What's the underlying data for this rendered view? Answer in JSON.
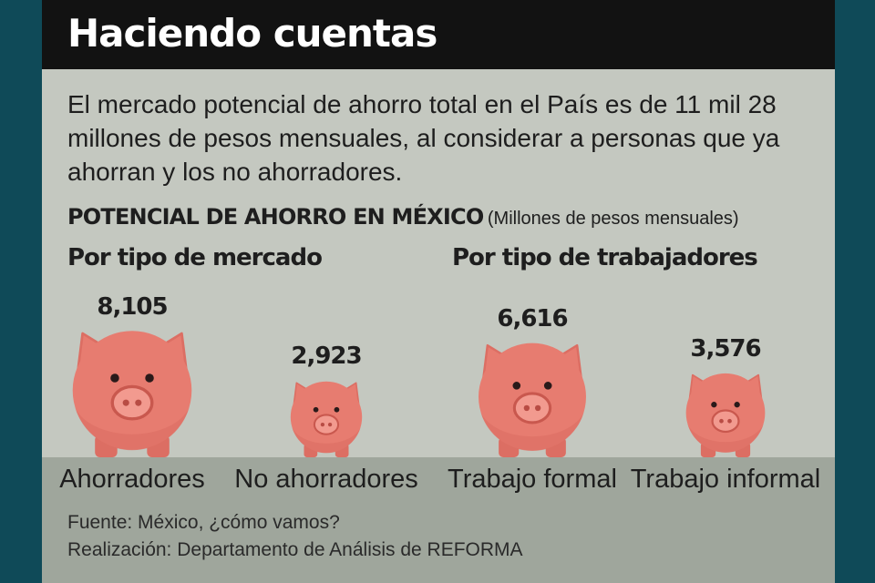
{
  "title": "Haciendo cuentas",
  "intro": "El mercado potencial de ahorro total en el País es de 11 mil 28 millones de pesos mensuales, al considerar a personas que ya ahorran y los no ahorradores.",
  "section_title": "POTENCIAL DE AHORRO EN MÉXICO",
  "section_unit": "(Millones de pesos mensuales)",
  "groups": [
    "Por tipo de mercado",
    "Por tipo de trabajadores"
  ],
  "source": "Fuente: México, ¿cómo vamos?",
  "credit": "Realización: Departamento de Análisis de REFORMA",
  "colors": {
    "background": "#0f4a58",
    "card": "#c4c8c0",
    "header": "#121212",
    "footer_band": "#9fa69c",
    "pig": "#e77c70",
    "pig_shade": "#dc6e63",
    "snout": "#f29a8f"
  },
  "chart_data": [
    {
      "type": "pictogram",
      "title": "Por tipo de mercado",
      "categories": [
        "Ahorradores",
        "No ahorradores"
      ],
      "values": [
        8105,
        2923
      ],
      "value_labels": [
        "8,105",
        "2,923"
      ]
    },
    {
      "type": "pictogram",
      "title": "Por tipo de trabajadores",
      "categories": [
        "Trabajo formal",
        "Trabajo informal"
      ],
      "values": [
        6616,
        3576
      ],
      "value_labels": [
        "6,616",
        "3,576"
      ]
    }
  ]
}
